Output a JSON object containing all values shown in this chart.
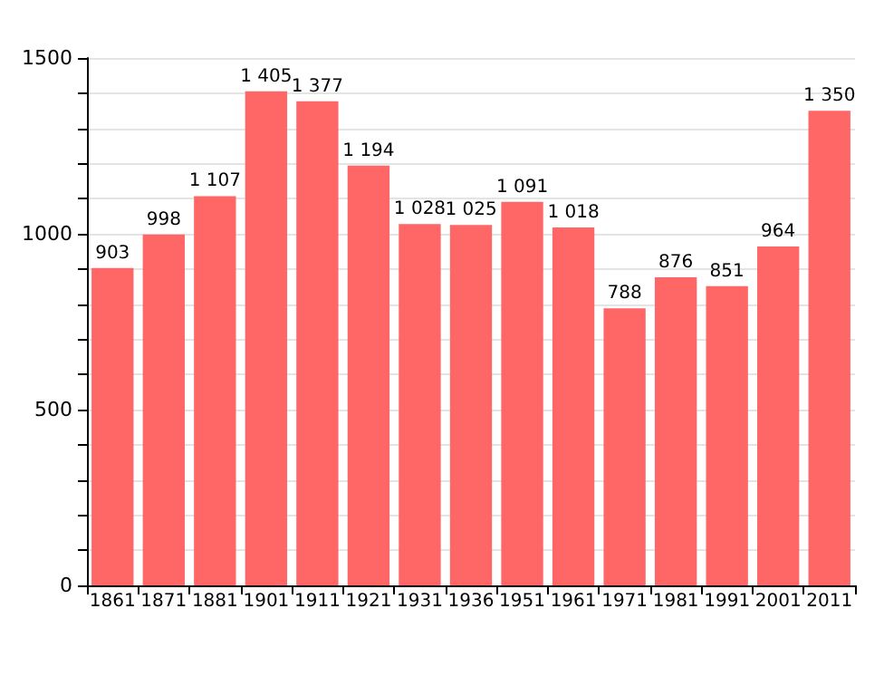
{
  "chart_data": {
    "type": "bar",
    "categories": [
      "1861",
      "1871",
      "1881",
      "1901",
      "1911",
      "1921",
      "1931",
      "1936",
      "1951",
      "1961",
      "1971",
      "1981",
      "1991",
      "2001",
      "2011"
    ],
    "values": [
      903,
      998,
      1107,
      1405,
      1377,
      1194,
      1028,
      1025,
      1091,
      1018,
      788,
      876,
      851,
      964,
      1350
    ],
    "value_labels": [
      "903",
      "998",
      "1 107",
      "1 405",
      "1 377",
      "1 194",
      "1 028",
      "1 025",
      "1 091",
      "1 018",
      "788",
      "876",
      "851",
      "964",
      "1 350"
    ],
    "color": "#ff6666",
    "ylim": [
      0,
      1500
    ],
    "yticks": [
      0,
      {
        "value": 100,
        "label": null
      },
      {
        "value": 200,
        "label": null
      },
      {
        "value": 300,
        "label": null
      },
      {
        "value": 400,
        "label": null
      },
      500,
      {
        "value": 600,
        "label": null
      },
      {
        "value": 700,
        "label": null
      },
      {
        "value": 800,
        "label": null
      },
      {
        "value": 900,
        "label": null
      },
      1000,
      {
        "value": 1100,
        "label": null
      },
      {
        "value": 1200,
        "label": null
      },
      {
        "value": 1300,
        "label": null
      },
      {
        "value": 1400,
        "label": null
      },
      1500
    ],
    "grid": "y"
  }
}
